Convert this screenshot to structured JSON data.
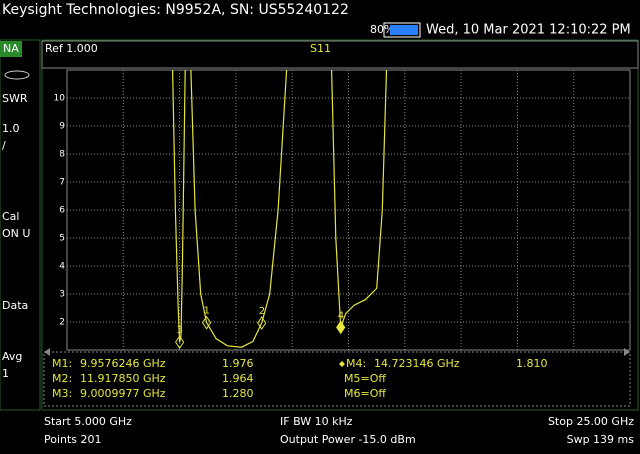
{
  "header": {
    "title": "Keysight Technologies: N9952A, SN: US55240122",
    "battery": "80%",
    "datetime": "Wed, 10 Mar 2021 12:10:22 PM"
  },
  "side_panel": {
    "mode": "NA",
    "format": "SWR",
    "scale": "1.0",
    "scale_unit": "/",
    "cal": "Cal",
    "cal_state": "ON U",
    "data": "Data",
    "avg": "Avg",
    "avg_count": "1"
  },
  "chart_data": {
    "type": "line",
    "ref": "Ref 1.000",
    "trace_name": "S11",
    "color": "#e6e63c",
    "grid": true,
    "x": [
      8.75,
      8.85,
      8.95,
      9.0,
      9.05,
      9.1,
      9.2,
      9.3,
      9.4,
      9.55,
      9.75,
      9.9576246,
      10.3,
      10.7,
      11.2,
      11.6,
      11.91785,
      12.2,
      12.5,
      12.8,
      13.6,
      14.4,
      14.55,
      14.723146,
      14.9,
      15.2,
      15.6,
      16.0,
      16.2,
      16.35
    ],
    "values": [
      11,
      6,
      2.5,
      1.28,
      1.5,
      4,
      11,
      null,
      11,
      6,
      3,
      1.976,
      1.4,
      1.15,
      1.1,
      1.3,
      1.964,
      3,
      6,
      11,
      null,
      11,
      5,
      1.81,
      2.3,
      2.6,
      2.8,
      3.2,
      6,
      11
    ],
    "xlim": [
      5,
      25
    ],
    "ylim": [
      1,
      11
    ],
    "yticks": [
      2,
      3,
      4,
      5,
      6,
      7,
      8,
      9,
      10
    ],
    "markers": [
      {
        "name": "M1:",
        "label": "1",
        "freq": "9.9576246 GHz",
        "x": 9.9576246,
        "value": 1.976,
        "value_label": "1.976"
      },
      {
        "name": "M2:",
        "label": "2",
        "freq": "11.917850 GHz",
        "x": 11.91785,
        "value": 1.964,
        "value_label": "1.964"
      },
      {
        "name": "M3:",
        "label": "3",
        "freq": "9.0009977 GHz",
        "x": 9.0009977,
        "value": 1.28,
        "value_label": "1.280"
      },
      {
        "name": "M4:",
        "label": "4",
        "freq": "14.723146 GHz",
        "x": 14.723146,
        "value": 1.81,
        "value_label": "1.810"
      }
    ],
    "markers_off": [
      "M5=Off",
      "M6=Off"
    ]
  },
  "footer": {
    "start": "Start 5.000 GHz",
    "ifbw": "IF BW 10 kHz",
    "stop": "Stop 25.00 GHz",
    "points": "Points 201",
    "power": "Output Power -15.0 dBm",
    "sweep": "Swp 139 ms"
  }
}
